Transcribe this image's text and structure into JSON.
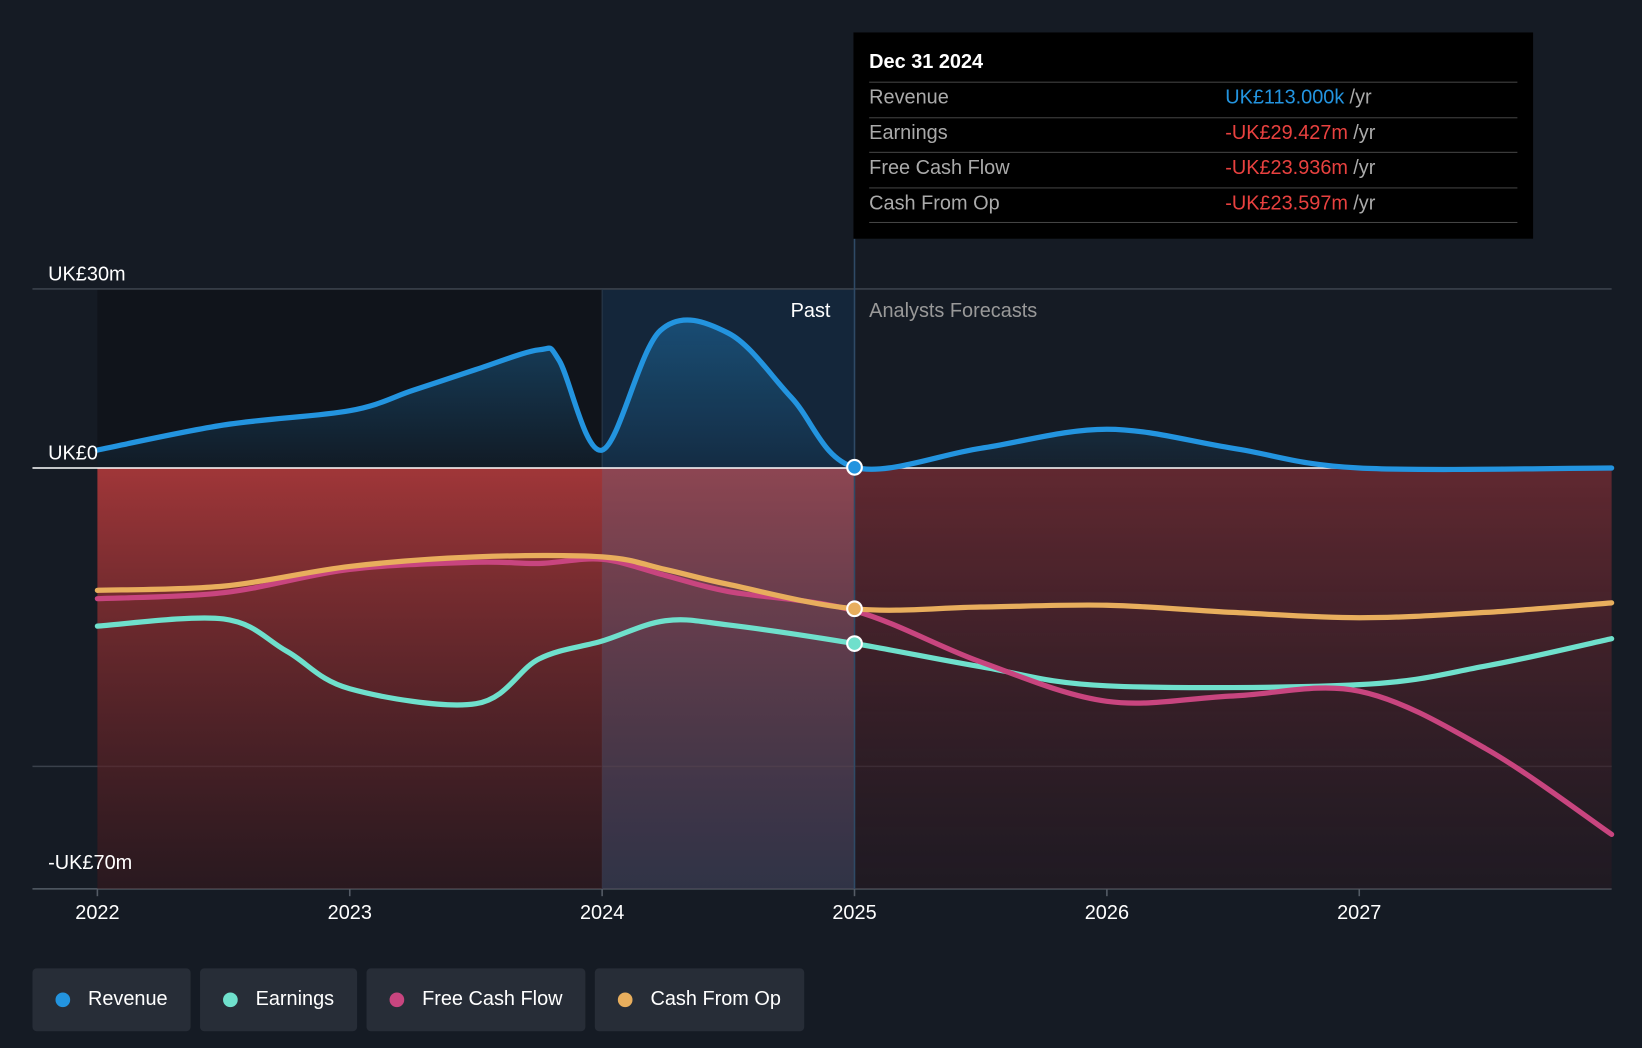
{
  "chart_data": {
    "type": "line",
    "y_ticks": [
      {
        "value": 30,
        "label": "UK£30m"
      },
      {
        "value": 0,
        "label": "UK£0"
      },
      {
        "value": -70,
        "label": "-UK£70m"
      }
    ],
    "ylim": [
      -70,
      30
    ],
    "x_ticks": [
      {
        "value": 2022,
        "label": "2022"
      },
      {
        "value": 2023,
        "label": "2023"
      },
      {
        "value": 2024,
        "label": "2024"
      },
      {
        "value": 2025,
        "label": "2025"
      },
      {
        "value": 2026,
        "label": "2026"
      },
      {
        "value": 2027,
        "label": "2027"
      }
    ],
    "xlim": [
      2021.75,
      2028
    ],
    "past_label": "Past",
    "forecast_label": "Analysts Forecasts",
    "divider_x": 2025,
    "highlight_start": 2024,
    "series": [
      {
        "name": "Revenue",
        "color": "#2394df",
        "points": [
          [
            2022,
            3
          ],
          [
            2022.5,
            7.2
          ],
          [
            2023,
            9.6
          ],
          [
            2023.25,
            13
          ],
          [
            2023.5,
            16.5
          ],
          [
            2023.75,
            19.8
          ],
          [
            2023.83,
            18
          ],
          [
            2024,
            3
          ],
          [
            2024.23,
            23
          ],
          [
            2024.5,
            22.6
          ],
          [
            2024.75,
            11.8
          ],
          [
            2025,
            0.113
          ],
          [
            2025.5,
            3.3
          ],
          [
            2026,
            6.5
          ],
          [
            2026.5,
            3.3
          ],
          [
            2027,
            0
          ],
          [
            2028,
            0
          ]
        ]
      },
      {
        "name": "Earnings",
        "color": "#6fe0cc",
        "points": [
          [
            2022,
            -26.5
          ],
          [
            2022.5,
            -25.3
          ],
          [
            2022.75,
            -30.7
          ],
          [
            2023,
            -37
          ],
          [
            2023.5,
            -39.5
          ],
          [
            2023.75,
            -32
          ],
          [
            2024,
            -29
          ],
          [
            2024.25,
            -25.6
          ],
          [
            2024.5,
            -26.3
          ],
          [
            2025,
            -29.427
          ],
          [
            2025.5,
            -33.3
          ],
          [
            2026,
            -36.5
          ],
          [
            2027,
            -36.3
          ],
          [
            2027.5,
            -33.2
          ],
          [
            2028,
            -28.6
          ]
        ]
      },
      {
        "name": "Free Cash Flow",
        "color": "#c8457f",
        "points": [
          [
            2022,
            -21.9
          ],
          [
            2022.5,
            -20.9
          ],
          [
            2023,
            -17
          ],
          [
            2023.5,
            -15.8
          ],
          [
            2023.75,
            -16
          ],
          [
            2024,
            -15.3
          ],
          [
            2024.25,
            -18
          ],
          [
            2024.5,
            -20.7
          ],
          [
            2025,
            -23.936
          ],
          [
            2025.5,
            -32.5
          ],
          [
            2026,
            -39.1
          ],
          [
            2026.5,
            -38.2
          ],
          [
            2027,
            -37.4
          ],
          [
            2027.5,
            -47
          ],
          [
            2028,
            -61.4
          ]
        ]
      },
      {
        "name": "Cash From Op",
        "color": "#e8ae5d",
        "points": [
          [
            2022,
            -20.5
          ],
          [
            2022.5,
            -19.8
          ],
          [
            2023,
            -16.5
          ],
          [
            2023.5,
            -14.9
          ],
          [
            2024,
            -14.9
          ],
          [
            2024.25,
            -17
          ],
          [
            2024.5,
            -19.5
          ],
          [
            2025,
            -23.597
          ],
          [
            2025.5,
            -23.3
          ],
          [
            2026,
            -23
          ],
          [
            2026.5,
            -24.2
          ],
          [
            2027,
            -25.1
          ],
          [
            2027.5,
            -24.2
          ],
          [
            2028,
            -22.6
          ]
        ]
      }
    ]
  },
  "tooltip": {
    "date": "Dec 31 2024",
    "rows": [
      {
        "label": "Revenue",
        "value": "UK£113.000k",
        "unit": "/yr",
        "color": "#2394df"
      },
      {
        "label": "Earnings",
        "value": "-UK£29.427m",
        "unit": "/yr",
        "color": "#e8413f"
      },
      {
        "label": "Free Cash Flow",
        "value": "-UK£23.936m",
        "unit": "/yr",
        "color": "#e8413f"
      },
      {
        "label": "Cash From Op",
        "value": "-UK£23.597m",
        "unit": "/yr",
        "color": "#e8413f"
      }
    ]
  },
  "legend": [
    {
      "label": "Revenue",
      "color": "#2394df"
    },
    {
      "label": "Earnings",
      "color": "#6fe0cc"
    },
    {
      "label": "Free Cash Flow",
      "color": "#c8457f"
    },
    {
      "label": "Cash From Op",
      "color": "#e8ae5d"
    }
  ]
}
